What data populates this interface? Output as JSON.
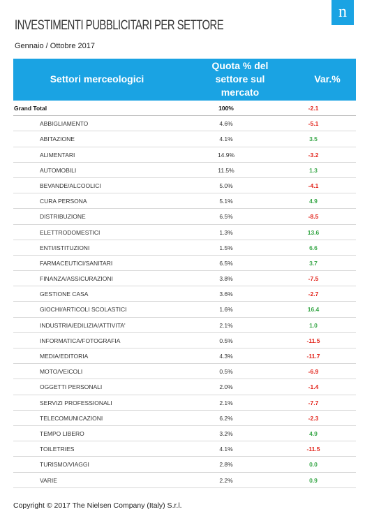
{
  "title": "INVESTIMENTI PUBBLICITARI PER SETTORE",
  "subtitle": "Gennaio / Ottobre 2017",
  "logo_text": "n",
  "table": {
    "headers": {
      "sector": "Settori merceologici",
      "share_line1": "Quota % del",
      "share_line2": "settore sul",
      "share_line3": "mercato",
      "variation": "Var.%"
    },
    "rows": [
      {
        "sector": "Grand Total",
        "share": "100%",
        "var": "-2.1",
        "sign": "neg",
        "grand": true
      },
      {
        "sector": "ABBIGLIAMENTO",
        "share": "4.6%",
        "var": "-5.1",
        "sign": "neg"
      },
      {
        "sector": "ABITAZIONE",
        "share": "4.1%",
        "var": "3.5",
        "sign": "pos"
      },
      {
        "sector": "ALIMENTARI",
        "share": "14.9%",
        "var": "-3.2",
        "sign": "neg"
      },
      {
        "sector": "AUTOMOBILI",
        "share": "11.5%",
        "var": "1.3",
        "sign": "pos"
      },
      {
        "sector": "BEVANDE/ALCOOLICI",
        "share": "5.0%",
        "var": "-4.1",
        "sign": "neg"
      },
      {
        "sector": "CURA PERSONA",
        "share": "5.1%",
        "var": "4.9",
        "sign": "pos"
      },
      {
        "sector": "DISTRIBUZIONE",
        "share": "6.5%",
        "var": "-8.5",
        "sign": "neg"
      },
      {
        "sector": "ELETTRODOMESTICI",
        "share": "1.3%",
        "var": "13.6",
        "sign": "pos"
      },
      {
        "sector": "ENTI/ISTITUZIONI",
        "share": "1.5%",
        "var": "6.6",
        "sign": "pos"
      },
      {
        "sector": "FARMACEUTICI/SANITARI",
        "share": "6.5%",
        "var": "3.7",
        "sign": "pos"
      },
      {
        "sector": "FINANZA/ASSICURAZIONI",
        "share": "3.8%",
        "var": "-7.5",
        "sign": "neg"
      },
      {
        "sector": "GESTIONE CASA",
        "share": "3.6%",
        "var": "-2.7",
        "sign": "neg"
      },
      {
        "sector": "GIOCHI/ARTICOLI SCOLASTICI",
        "share": "1.6%",
        "var": "16.4",
        "sign": "pos"
      },
      {
        "sector": "INDUSTRIA/EDILIZIA/ATTIVITA'",
        "share": "2.1%",
        "var": "1.0",
        "sign": "pos"
      },
      {
        "sector": "INFORMATICA/FOTOGRAFIA",
        "share": "0.5%",
        "var": "-11.5",
        "sign": "neg"
      },
      {
        "sector": "MEDIA/EDITORIA",
        "share": "4.3%",
        "var": "-11.7",
        "sign": "neg"
      },
      {
        "sector": "MOTO/VEICOLI",
        "share": "0.5%",
        "var": "-6.9",
        "sign": "neg"
      },
      {
        "sector": "OGGETTI PERSONALI",
        "share": "2.0%",
        "var": "-1.4",
        "sign": "neg"
      },
      {
        "sector": "SERVIZI PROFESSIONALI",
        "share": "2.1%",
        "var": "-7.7",
        "sign": "neg"
      },
      {
        "sector": "TELECOMUNICAZIONI",
        "share": "6.2%",
        "var": "-2.3",
        "sign": "neg"
      },
      {
        "sector": "TEMPO LIBERO",
        "share": "3.2%",
        "var": "4.9",
        "sign": "pos"
      },
      {
        "sector": "TOILETRIES",
        "share": "4.1%",
        "var": "-11.5",
        "sign": "neg"
      },
      {
        "sector": "TURISMO/VIAGGI",
        "share": "2.8%",
        "var": "0.0",
        "sign": "pos"
      },
      {
        "sector": "VARIE",
        "share": "2.2%",
        "var": "0.9",
        "sign": "pos"
      }
    ]
  },
  "colors": {
    "header_bg": "#1aa3e3",
    "negative": "#e2231a",
    "positive": "#3aa84a"
  },
  "footer": "Copyright © 2017 The Nielsen Company (Italy) S.r.l."
}
